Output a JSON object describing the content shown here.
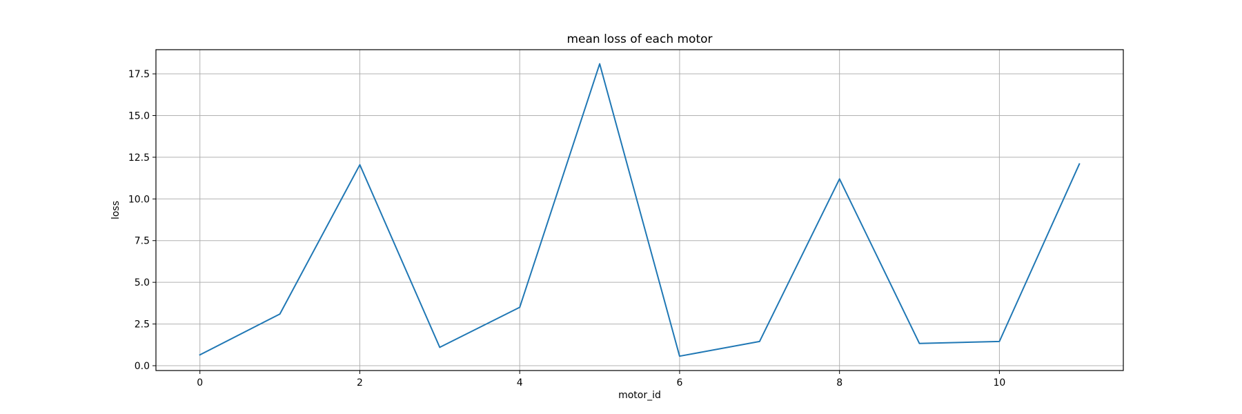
{
  "chart_data": {
    "type": "line",
    "title": "mean loss of each motor",
    "xlabel": "motor_id",
    "ylabel": "loss",
    "xlim": [
      -0.55,
      11.55
    ],
    "ylim": [
      -0.29,
      18.95
    ],
    "xticks": [
      0,
      2,
      4,
      6,
      8,
      10
    ],
    "yticks": [
      0.0,
      2.5,
      5.0,
      7.5,
      10.0,
      12.5,
      15.0,
      17.5
    ],
    "xtick_labels": [
      "0",
      "2",
      "4",
      "6",
      "8",
      "10"
    ],
    "ytick_labels": [
      "0.0",
      "2.5",
      "5.0",
      "7.5",
      "10.0",
      "12.5",
      "15.0",
      "17.5"
    ],
    "grid": true,
    "series": [
      {
        "color": "#1f77b4",
        "x": [
          0,
          1,
          2,
          3,
          4,
          5,
          6,
          7,
          8,
          9,
          10,
          11
        ],
        "values": [
          0.65,
          3.1,
          12.05,
          1.1,
          3.5,
          18.1,
          0.57,
          1.45,
          11.2,
          1.33,
          1.45,
          12.1
        ]
      }
    ]
  }
}
